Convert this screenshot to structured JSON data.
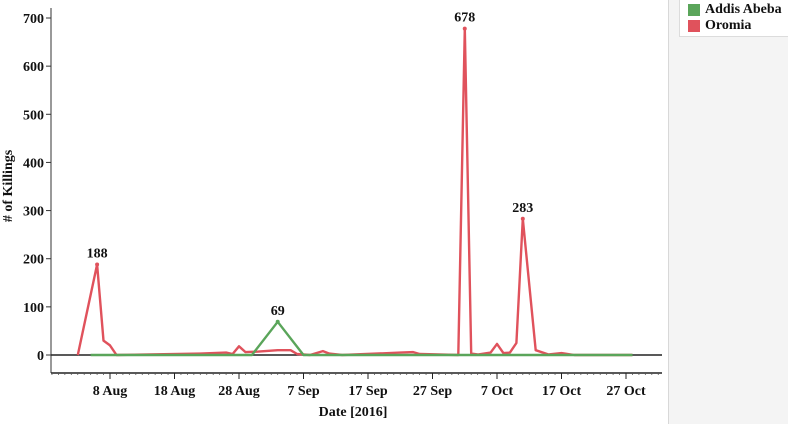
{
  "chart_data": {
    "type": "line",
    "title": "",
    "xlabel": "Date [2016]",
    "ylabel": "# of Killings",
    "ylim": [
      -40,
      710
    ],
    "yticks": [
      0,
      100,
      200,
      300,
      400,
      500,
      600,
      700
    ],
    "xticks": [
      "8 Aug",
      "18 Aug",
      "28 Aug",
      "7 Sep",
      "17 Sep",
      "27 Sep",
      "7 Oct",
      "17 Oct",
      "27 Oct"
    ],
    "xtick_dates": [
      "2016-08-08",
      "2016-08-18",
      "2016-08-28",
      "2016-09-07",
      "2016-09-17",
      "2016-09-27",
      "2016-10-07",
      "2016-10-17",
      "2016-10-27"
    ],
    "grid": false,
    "legend_position": "right",
    "series": [
      {
        "name": "Addis Abeba",
        "color": "#5aa55a",
        "points": [
          {
            "date": "2016-08-05",
            "value": 0
          },
          {
            "date": "2016-08-30",
            "value": 0
          },
          {
            "date": "2016-09-03",
            "value": 69
          },
          {
            "date": "2016-09-07",
            "value": 0
          },
          {
            "date": "2016-10-28",
            "value": 0
          }
        ],
        "annotations": [
          {
            "date": "2016-09-03",
            "value": 69,
            "label": "69"
          }
        ]
      },
      {
        "name": "Oromia",
        "color": "#e0525c",
        "points": [
          {
            "date": "2016-08-03",
            "value": 0
          },
          {
            "date": "2016-08-06",
            "value": 188
          },
          {
            "date": "2016-08-07",
            "value": 30
          },
          {
            "date": "2016-08-08",
            "value": 20
          },
          {
            "date": "2016-08-09",
            "value": 0
          },
          {
            "date": "2016-08-22",
            "value": 3
          },
          {
            "date": "2016-08-26",
            "value": 5
          },
          {
            "date": "2016-08-27",
            "value": 2
          },
          {
            "date": "2016-08-28",
            "value": 18
          },
          {
            "date": "2016-08-29",
            "value": 6
          },
          {
            "date": "2016-08-31",
            "value": 7
          },
          {
            "date": "2016-09-03",
            "value": 10
          },
          {
            "date": "2016-09-05",
            "value": 10
          },
          {
            "date": "2016-09-06",
            "value": 2
          },
          {
            "date": "2016-09-08",
            "value": 0
          },
          {
            "date": "2016-09-10",
            "value": 8
          },
          {
            "date": "2016-09-11",
            "value": 3
          },
          {
            "date": "2016-09-13",
            "value": 0
          },
          {
            "date": "2016-09-22",
            "value": 5
          },
          {
            "date": "2016-09-24",
            "value": 6
          },
          {
            "date": "2016-09-25",
            "value": 2
          },
          {
            "date": "2016-10-01",
            "value": 0
          },
          {
            "date": "2016-10-02",
            "value": 678
          },
          {
            "date": "2016-10-03",
            "value": 3
          },
          {
            "date": "2016-10-04",
            "value": 1
          },
          {
            "date": "2016-10-06",
            "value": 5
          },
          {
            "date": "2016-10-07",
            "value": 23
          },
          {
            "date": "2016-10-08",
            "value": 4
          },
          {
            "date": "2016-10-09",
            "value": 5
          },
          {
            "date": "2016-10-10",
            "value": 25
          },
          {
            "date": "2016-10-11",
            "value": 283
          },
          {
            "date": "2016-10-13",
            "value": 10
          },
          {
            "date": "2016-10-15",
            "value": 1
          },
          {
            "date": "2016-10-17",
            "value": 4
          },
          {
            "date": "2016-10-19",
            "value": 0
          },
          {
            "date": "2016-10-28",
            "value": 0
          }
        ],
        "annotations": [
          {
            "date": "2016-08-06",
            "value": 188,
            "label": "188"
          },
          {
            "date": "2016-10-02",
            "value": 678,
            "label": "678"
          },
          {
            "date": "2016-10-11",
            "value": 283,
            "label": "283"
          }
        ]
      }
    ]
  },
  "legend": {
    "items": [
      {
        "label": "Addis Abeba",
        "color": "#5aa55a"
      },
      {
        "label": "Oromia",
        "color": "#e0525c"
      }
    ]
  }
}
